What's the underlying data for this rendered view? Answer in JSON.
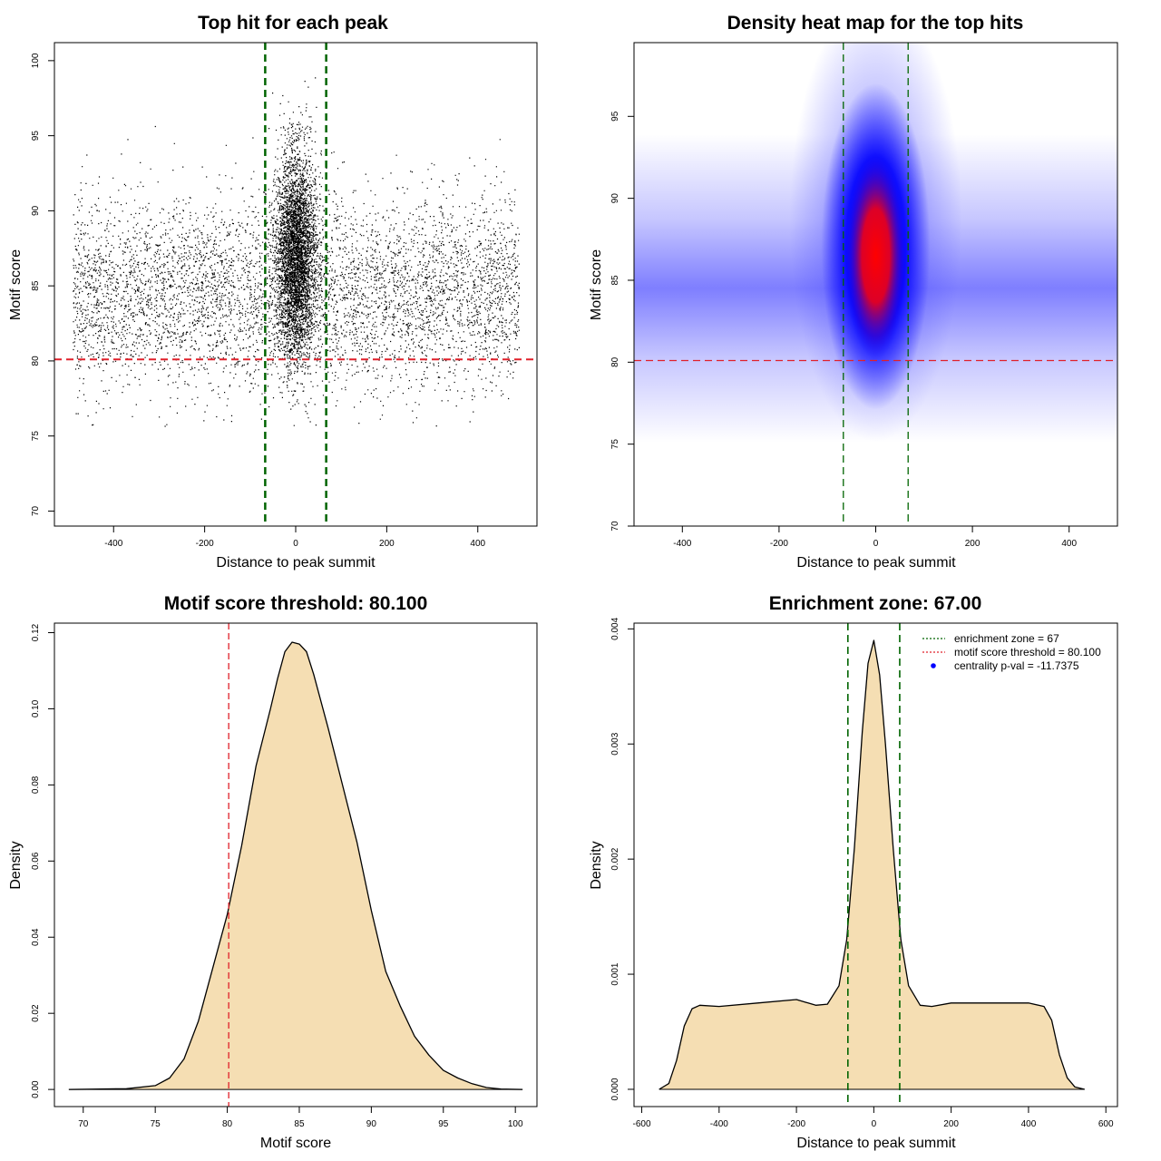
{
  "chart_data": [
    {
      "id": "scatter",
      "type": "scatter",
      "title": "Top hit for each peak",
      "xlabel": "Distance to peak summit",
      "ylabel": "Motif score",
      "xlim": [
        -530,
        530
      ],
      "ylim": [
        69,
        101.2
      ],
      "xticks": [
        -400,
        -200,
        0,
        200,
        400
      ],
      "yticks": [
        70,
        75,
        80,
        85,
        90,
        95,
        100
      ],
      "point_color": "#000000",
      "approx_points": 22000,
      "x_range_data": [
        -490,
        490
      ],
      "central_cluster": {
        "x_center": 0,
        "x_sd": 22,
        "score_mean": 87,
        "score_max": 99.7
      },
      "background": {
        "score_mean": 84.5,
        "score_range": [
          75.5,
          97.5
        ]
      },
      "enrichment_zone_lines": {
        "x": [
          -67,
          67
        ],
        "color": "#006400",
        "style": "dashed"
      },
      "threshold_line": {
        "y": 80.1,
        "color": "#e0202a",
        "style": "dashed"
      }
    },
    {
      "id": "heatmap",
      "type": "heatmap",
      "title": "Density heat map for the top hits",
      "xlabel": "Distance to peak summit",
      "ylabel": "Motif score",
      "xlim": [
        -500,
        500
      ],
      "ylim": [
        70,
        99.5
      ],
      "xticks": [
        -400,
        -200,
        0,
        200,
        400
      ],
      "yticks": [
        70,
        75,
        80,
        85,
        90,
        95
      ],
      "colors": {
        "low": "#ffffff",
        "mid": "#0000ff",
        "high": "#ff0000"
      },
      "hotspot": {
        "x": 0,
        "y": 86.5
      },
      "background_band": {
        "y": 84.5
      },
      "enrichment_zone_lines": {
        "x": [
          -67,
          67
        ],
        "color": "#006400",
        "style": "dashed"
      },
      "threshold_line": {
        "y": 80.1,
        "color": "#e0202a",
        "style": "dashed"
      }
    },
    {
      "id": "score_density",
      "type": "area",
      "title": "Motif score threshold: 80.100",
      "xlabel": "Motif score",
      "ylabel": "Density",
      "xlim": [
        68,
        101.5
      ],
      "ylim": [
        -0.0045,
        0.1225
      ],
      "xticks": [
        70,
        75,
        80,
        85,
        90,
        95,
        100
      ],
      "yticks": [
        0.0,
        0.02,
        0.04,
        0.06,
        0.08,
        0.1,
        0.12
      ],
      "ytick_labels": [
        "0.00",
        "0.02",
        "0.04",
        "0.06",
        "0.08",
        "0.10",
        "0.12"
      ],
      "fill_color": "#f5deb3",
      "curve": {
        "x": [
          69,
          73,
          75,
          76,
          77,
          78,
          79,
          80,
          81,
          82,
          83,
          83.5,
          84,
          84.5,
          85,
          85.5,
          86,
          87,
          88,
          89,
          90,
          91,
          92,
          93,
          94,
          94.5,
          95,
          96,
          97,
          98,
          99,
          100.5
        ],
        "y": [
          0,
          0.0002,
          0.001,
          0.003,
          0.008,
          0.018,
          0.032,
          0.046,
          0.064,
          0.085,
          0.1,
          0.108,
          0.115,
          0.1175,
          0.117,
          0.115,
          0.109,
          0.095,
          0.08,
          0.065,
          0.047,
          0.031,
          0.022,
          0.014,
          0.009,
          0.007,
          0.005,
          0.003,
          0.0015,
          0.0005,
          0.0001,
          0
        ]
      },
      "threshold_line": {
        "x": 80.1,
        "color": "#e0202a",
        "style": "dashed"
      }
    },
    {
      "id": "distance_density",
      "type": "area",
      "title": "Enrichment zone: 67.00",
      "xlabel": "Distance to peak summit",
      "ylabel": "Density",
      "xlim": [
        -620,
        630
      ],
      "ylim": [
        -0.00015,
        0.00405
      ],
      "xticks": [
        -600,
        -400,
        -200,
        0,
        200,
        400,
        600
      ],
      "yticks": [
        0.0,
        0.001,
        0.002,
        0.003,
        0.004
      ],
      "ytick_labels": [
        "0.000",
        "0.001",
        "0.002",
        "0.003",
        "0.004"
      ],
      "fill_color": "#f5deb3",
      "curve": {
        "x": [
          -555,
          -530,
          -510,
          -490,
          -470,
          -450,
          -400,
          -300,
          -200,
          -150,
          -120,
          -90,
          -70,
          -50,
          -30,
          -15,
          0,
          15,
          30,
          50,
          70,
          90,
          120,
          150,
          200,
          300,
          400,
          440,
          460,
          480,
          500,
          520,
          545
        ],
        "y": [
          0,
          5e-05,
          0.00025,
          0.00055,
          0.0007,
          0.00073,
          0.00072,
          0.00075,
          0.00078,
          0.00073,
          0.00074,
          0.0009,
          0.0013,
          0.0021,
          0.0031,
          0.0037,
          0.0039,
          0.0036,
          0.003,
          0.0021,
          0.0013,
          0.0009,
          0.00073,
          0.00072,
          0.00075,
          0.00075,
          0.00075,
          0.00072,
          0.0006,
          0.0003,
          0.0001,
          2e-05,
          0
        ]
      },
      "enrichment_zone_lines": {
        "x": [
          -67,
          67
        ],
        "color": "#006400",
        "style": "dashed"
      },
      "legend": {
        "placement": "top-right",
        "entries": [
          {
            "label": "enrichment zone = 67",
            "color": "#006400",
            "symbol": "dotted-line"
          },
          {
            "label": "motif score threshold = 80.100",
            "color": "#e0202a",
            "symbol": "dotted-line"
          },
          {
            "label": "centrality p-val = -11.7375",
            "color": "#0000ff",
            "symbol": "point"
          }
        ]
      }
    }
  ]
}
